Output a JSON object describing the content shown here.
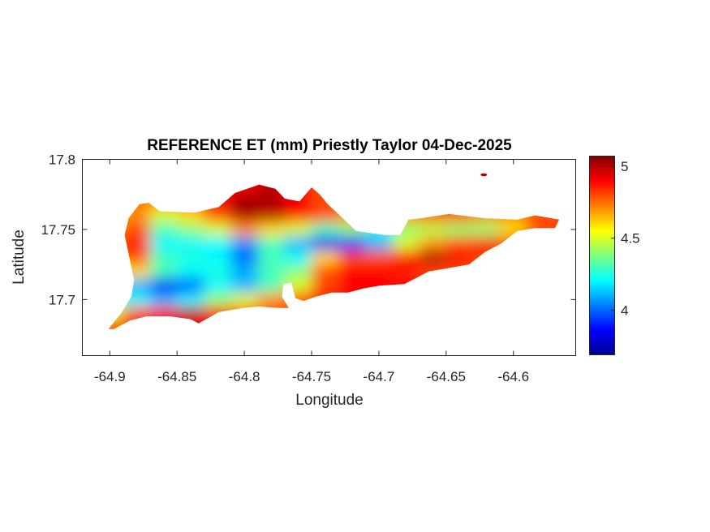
{
  "chart_data": {
    "type": "heatmap",
    "title": "REFERENCE ET (mm) Priestly Taylor 04-Dec-2025",
    "xlabel": "Longitude",
    "ylabel": "Latitude",
    "xlim": [
      -64.9204,
      -64.5537
    ],
    "ylim": [
      17.66,
      17.8
    ],
    "xticks": [
      "-64.9",
      "-64.85",
      "-64.8",
      "-64.75",
      "-64.7",
      "-64.65",
      "-64.6"
    ],
    "xtick_values": [
      -64.9,
      -64.85,
      -64.8,
      -64.75,
      -64.7,
      -64.65,
      -64.6
    ],
    "yticks": [
      "17.7",
      "17.75",
      "17.8"
    ],
    "ytick_values": [
      17.7,
      17.75,
      17.8
    ],
    "colormap": "jet",
    "clim": [
      3.69,
      5.07
    ],
    "colorbar": {
      "ticks": [
        "4",
        "4.5",
        "5"
      ],
      "tick_values": [
        4,
        4.5,
        5
      ],
      "position": "right"
    },
    "grid": false,
    "grid_lon": [
      -64.9,
      -64.88,
      -64.86,
      -64.84,
      -64.82,
      -64.8,
      -64.78,
      -64.76,
      -64.74,
      -64.72,
      -64.7,
      -64.68,
      -64.66,
      -64.64,
      -64.62,
      -64.6,
      -64.58,
      -64.56
    ],
    "grid_lat": [
      17.78,
      17.77,
      17.76,
      17.75,
      17.74,
      17.73,
      17.72,
      17.71,
      17.7,
      17.69,
      17.68
    ],
    "values": [
      [
        4.8,
        4.8,
        4.8,
        4.8,
        4.9,
        4.9,
        5.0,
        4.9,
        4.8,
        4.8,
        4.8,
        4.8,
        4.8,
        4.8,
        4.8,
        4.8,
        4.8,
        4.8
      ],
      [
        4.7,
        4.75,
        4.7,
        4.8,
        4.9,
        5.05,
        5.0,
        4.9,
        4.8,
        4.75,
        4.7,
        4.7,
        4.75,
        4.8,
        4.8,
        4.8,
        4.8,
        4.8
      ],
      [
        4.7,
        4.7,
        4.5,
        4.6,
        4.8,
        5.0,
        5.0,
        4.9,
        4.8,
        4.7,
        4.65,
        4.7,
        4.8,
        4.8,
        4.7,
        4.7,
        4.8,
        4.8
      ],
      [
        4.7,
        4.8,
        4.3,
        4.4,
        4.5,
        4.7,
        4.6,
        4.5,
        4.3,
        4.4,
        4.2,
        4.4,
        4.45,
        4.4,
        4.4,
        4.6,
        4.8,
        4.8
      ],
      [
        4.8,
        4.85,
        4.2,
        4.2,
        4.2,
        4.05,
        4.3,
        4.1,
        3.85,
        3.9,
        4.1,
        4.5,
        4.7,
        4.8,
        4.9,
        4.8,
        4.8,
        4.8
      ],
      [
        4.8,
        4.8,
        4.3,
        4.25,
        4.2,
        4.0,
        4.3,
        4.2,
        4.6,
        4.8,
        4.8,
        4.9,
        5.0,
        4.9,
        4.8,
        4.8,
        4.8,
        4.8
      ],
      [
        4.6,
        4.6,
        4.3,
        4.2,
        4.25,
        4.1,
        4.3,
        4.4,
        4.8,
        4.9,
        4.9,
        4.85,
        4.8,
        4.8,
        4.8,
        4.8,
        4.8,
        4.8
      ],
      [
        4.2,
        4.1,
        3.85,
        3.95,
        4.2,
        4.1,
        4.3,
        4.5,
        4.8,
        4.9,
        4.9,
        4.9,
        4.9,
        4.9,
        4.9,
        4.9,
        4.9,
        4.9
      ],
      [
        4.3,
        4.2,
        4.1,
        4.2,
        4.4,
        4.5,
        4.7,
        4.8,
        4.9,
        4.9,
        4.9,
        4.9,
        4.9,
        4.9,
        4.9,
        4.9,
        4.9,
        4.9
      ],
      [
        4.5,
        4.8,
        4.9,
        5.0,
        4.9,
        4.8,
        4.8,
        4.8,
        4.8,
        4.8,
        4.8,
        4.8,
        4.8,
        4.8,
        4.8,
        4.8,
        4.8,
        4.8
      ],
      [
        4.9,
        4.9,
        4.9,
        4.9,
        4.9,
        4.9,
        4.9,
        4.9,
        4.9,
        4.9,
        4.9,
        4.9,
        4.9,
        4.9,
        4.9,
        4.9,
        4.9,
        4.9
      ]
    ],
    "islet": {
      "lon": -64.622,
      "lat": 17.789,
      "value": 5.0
    },
    "outline": [
      [
        -64.901,
        17.679
      ],
      [
        -64.891,
        17.691
      ],
      [
        -64.884,
        17.702
      ],
      [
        -64.882,
        17.714
      ],
      [
        -64.885,
        17.728
      ],
      [
        -64.889,
        17.746
      ],
      [
        -64.886,
        17.758
      ],
      [
        -64.878,
        17.768
      ],
      [
        -64.871,
        17.769
      ],
      [
        -64.863,
        17.763
      ],
      [
        -64.837,
        17.762
      ],
      [
        -64.819,
        17.766
      ],
      [
        -64.807,
        17.776
      ],
      [
        -64.789,
        17.782
      ],
      [
        -64.777,
        17.779
      ],
      [
        -64.77,
        17.772
      ],
      [
        -64.759,
        17.77
      ],
      [
        -64.75,
        17.78
      ],
      [
        -64.744,
        17.775
      ],
      [
        -64.738,
        17.768
      ],
      [
        -64.729,
        17.76
      ],
      [
        -64.717,
        17.749
      ],
      [
        -64.696,
        17.746
      ],
      [
        -64.684,
        17.746
      ],
      [
        -64.678,
        17.757
      ],
      [
        -64.669,
        17.758
      ],
      [
        -64.648,
        17.761
      ],
      [
        -64.621,
        17.758
      ],
      [
        -64.597,
        17.757
      ],
      [
        -64.584,
        17.76
      ],
      [
        -64.566,
        17.757
      ],
      [
        -64.569,
        17.751
      ],
      [
        -64.584,
        17.751
      ],
      [
        -64.597,
        17.749
      ],
      [
        -64.609,
        17.74
      ],
      [
        -64.621,
        17.734
      ],
      [
        -64.633,
        17.725
      ],
      [
        -64.645,
        17.723
      ],
      [
        -64.663,
        17.72
      ],
      [
        -64.681,
        17.711
      ],
      [
        -64.699,
        17.71
      ],
      [
        -64.711,
        17.708
      ],
      [
        -64.723,
        17.705
      ],
      [
        -64.735,
        17.705
      ],
      [
        -64.747,
        17.702
      ],
      [
        -64.756,
        17.699
      ],
      [
        -64.762,
        17.701
      ],
      [
        -64.765,
        17.712
      ],
      [
        -64.771,
        17.711
      ],
      [
        -64.772,
        17.702
      ],
      [
        -64.767,
        17.694
      ],
      [
        -64.774,
        17.694
      ],
      [
        -64.789,
        17.695
      ],
      [
        -64.801,
        17.694
      ],
      [
        -64.819,
        17.691
      ],
      [
        -64.834,
        17.683
      ],
      [
        -64.84,
        17.686
      ],
      [
        -64.855,
        17.688
      ],
      [
        -64.873,
        17.688
      ],
      [
        -64.885,
        17.685
      ],
      [
        -64.897,
        17.679
      ]
    ]
  }
}
